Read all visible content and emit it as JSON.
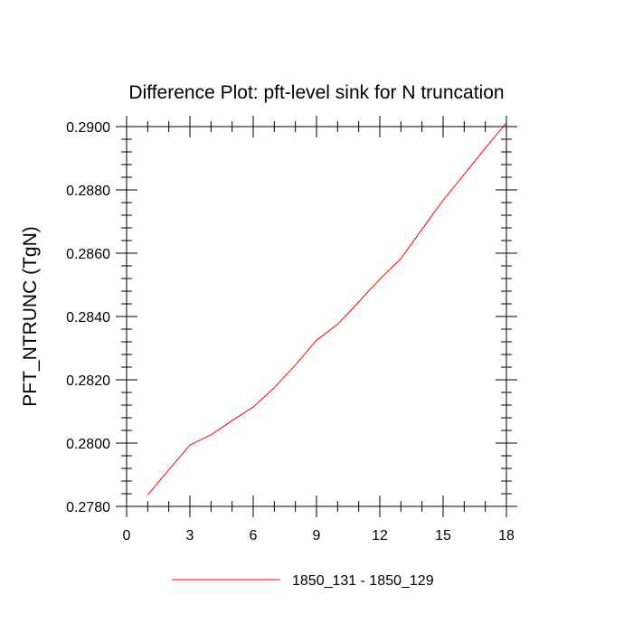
{
  "chart_data": {
    "type": "line",
    "title": "Difference Plot: pft-level sink for N truncation",
    "xlabel": "",
    "ylabel": "PFT_NTRUNC  (TgN)",
    "xlim": [
      0,
      18
    ],
    "ylim": [
      0.278,
      0.29
    ],
    "xticks": [
      0,
      3,
      6,
      9,
      12,
      15,
      18
    ],
    "xtick_labels": [
      "0",
      "3",
      "6",
      "9",
      "12",
      "15",
      "18"
    ],
    "yticks": [
      0.278,
      0.28,
      0.282,
      0.284,
      0.286,
      0.288,
      0.29
    ],
    "ytick_labels": [
      "0.2780",
      "0.2800",
      "0.2820",
      "0.2840",
      "0.2860",
      "0.2880",
      "0.2900"
    ],
    "grid": false,
    "legend_position": "bottom",
    "series": [
      {
        "name": "1850_131 - 1850_129",
        "color": "#ff0000",
        "x": [
          1,
          2,
          3,
          4,
          5,
          6,
          7,
          8,
          9,
          10,
          11,
          12,
          13,
          14,
          15,
          16,
          17,
          18
        ],
        "y": [
          0.27836,
          0.27916,
          0.27994,
          0.28026,
          0.28071,
          0.28114,
          0.28175,
          0.28247,
          0.28325,
          0.28375,
          0.28446,
          0.28518,
          0.28583,
          0.28676,
          0.28767,
          0.28849,
          0.28932,
          0.29012
        ]
      }
    ]
  }
}
